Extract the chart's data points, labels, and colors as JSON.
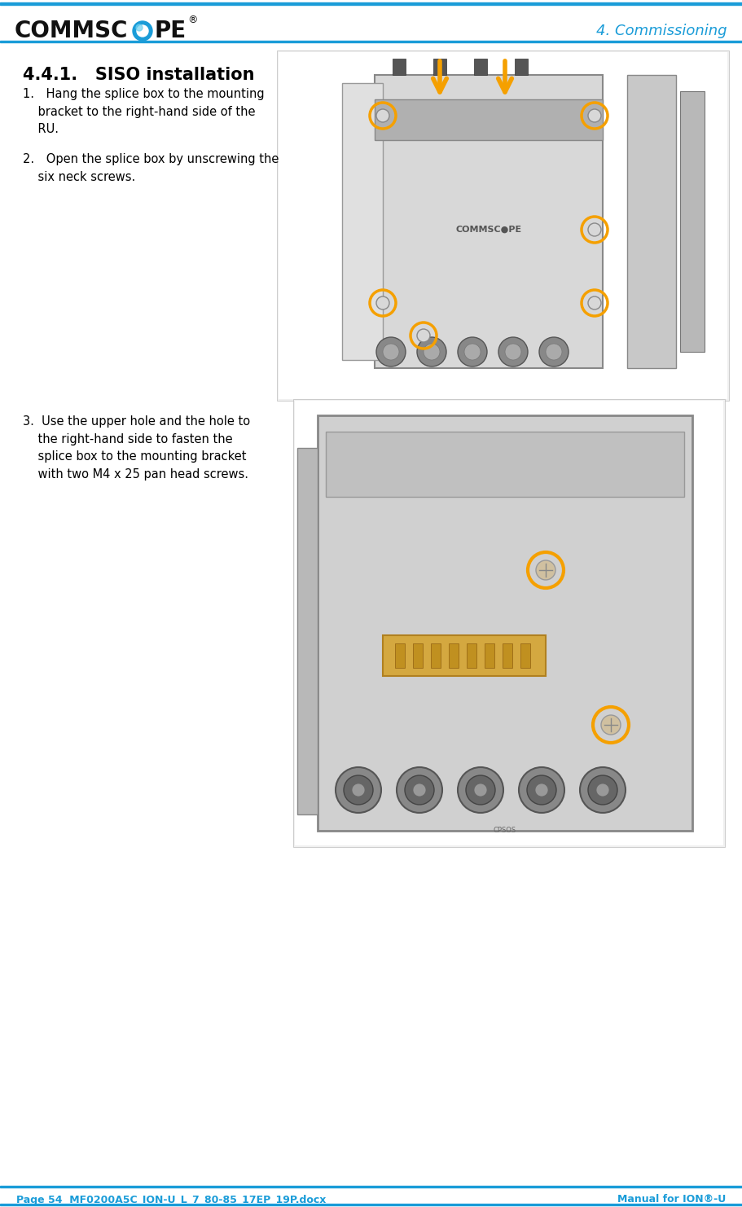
{
  "page_bg": "#ffffff",
  "header_line_color": "#1a9cd8",
  "header_bg": "#ffffff",
  "logo_text": "COMMSC○Pe®",
  "header_right_text": "4. Commissioning",
  "header_color": "#1a9cd8",
  "section_title": "4.4.1.   SISO installation",
  "section_title_color": "#000000",
  "section_title_size": 15,
  "body_text_color": "#000000",
  "body_font_size": 10.5,
  "step1_lines": [
    "1. Hang the splice box to the mounting",
    "    bracket to the right-hand side of the",
    "    RU."
  ],
  "step2_lines": [
    "2. Open the splice box by unscrewing the",
    "    six neck screws."
  ],
  "step3_lines": [
    "3.  Use the upper hole and the hole to",
    "    the right-hand side to fasten the",
    "    splice box to the mounting bracket",
    "    with two M4 x 25 pan head screws."
  ],
  "footer_text_left": "Page 54  MF0200A5C_ION-U_L_7_80-85_17EP_19P.docx",
  "footer_text_right": "Manual for ION®-U",
  "footer_color": "#1a9cd8",
  "footer_line_color": "#1a9cd8",
  "image1_placeholder_color": "#e8e8e8",
  "image2_placeholder_color": "#e8e8e8",
  "accent_orange": "#f5a623",
  "accent_blue": "#1a9cd8"
}
